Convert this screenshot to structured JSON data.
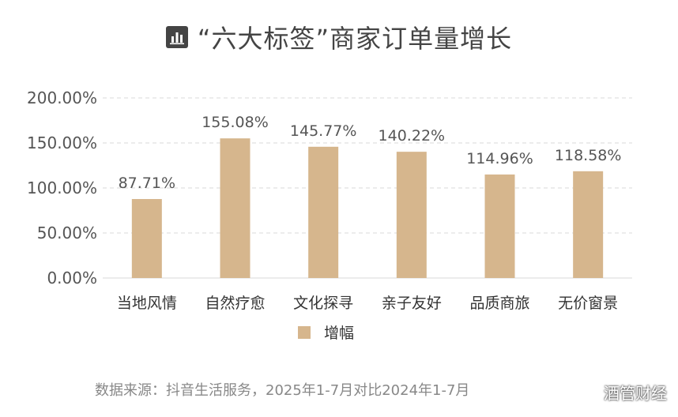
{
  "page": {
    "title": "“六大标签”商家订单量增长",
    "title_icon": "bar-chart-icon",
    "source": "数据来源：抖音生活服务，2025年1-7月对比2024年1-7月",
    "watermark": "酒管财经"
  },
  "colors": {
    "bar": "#D6B68D",
    "grid": "#D9D9D9",
    "axis_text": "#555555",
    "label_text": "#555555",
    "title": "#444444",
    "source": "#888888"
  },
  "chart_data": {
    "type": "bar",
    "categories": [
      "当地风情",
      "自然疗愈",
      "文化探寻",
      "亲子友好",
      "品质商旅",
      "无价窗景"
    ],
    "series": [
      {
        "name": "增幅",
        "values": [
          87.71,
          155.08,
          145.77,
          140.22,
          114.96,
          118.58
        ]
      }
    ],
    "data_labels": [
      "87.71%",
      "155.08%",
      "145.77%",
      "140.22%",
      "114.96%",
      "118.58%"
    ],
    "ylim": [
      0,
      200
    ],
    "yticks": [
      0,
      50,
      100,
      150,
      200
    ],
    "ytick_labels": [
      "0.00%",
      "50.00%",
      "100.00%",
      "150.00%",
      "200.00%"
    ],
    "grid": true,
    "legend_position": "bottom-center",
    "xlabel": "",
    "ylabel": ""
  }
}
